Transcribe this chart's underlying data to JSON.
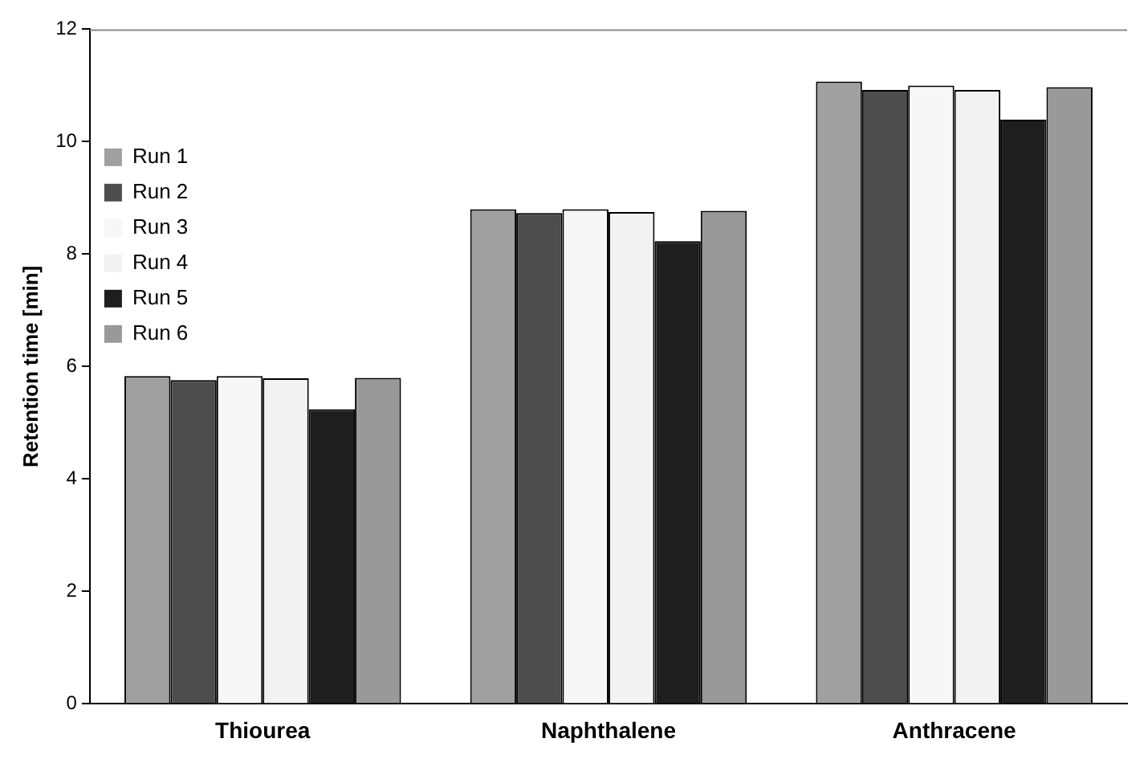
{
  "chart_data": {
    "type": "bar",
    "ylabel": "Retention time [min]",
    "categories": [
      "Thiourea",
      "Naphthalene",
      "Anthracene"
    ],
    "series": [
      {
        "name": "Run 1",
        "color": "#a0a0a0",
        "values": [
          5.83,
          8.8,
          11.07
        ]
      },
      {
        "name": "Run 2",
        "color": "#4d4d4d",
        "values": [
          5.76,
          8.73,
          10.92
        ]
      },
      {
        "name": "Run 3",
        "color": "#f7f7f7",
        "values": [
          5.83,
          8.8,
          11.0
        ]
      },
      {
        "name": "Run 4",
        "color": "#f2f2f2",
        "values": [
          5.79,
          8.75,
          10.92
        ]
      },
      {
        "name": "Run 5",
        "color": "#1e1e1e",
        "values": [
          5.24,
          8.23,
          10.39
        ]
      },
      {
        "name": "Run 6",
        "color": "#999999",
        "values": [
          5.8,
          8.77,
          10.97
        ]
      }
    ],
    "ylim": [
      0,
      12
    ],
    "yticks": [
      0,
      2,
      4,
      6,
      8,
      10,
      12
    ],
    "grid": false,
    "legend": "top left"
  }
}
